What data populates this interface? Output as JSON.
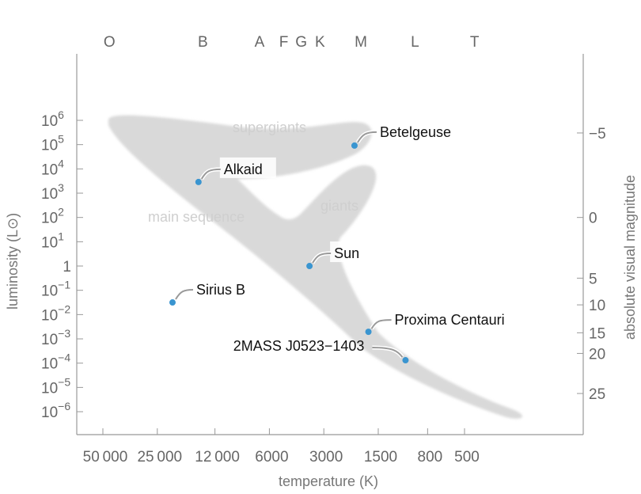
{
  "chart_data": {
    "type": "scatter",
    "title": "",
    "xlabel": "temperature (K)",
    "ylabel": "luminosity (L⊙)",
    "y2label": "absolute visual magnitude",
    "x_scale": "log-reversed",
    "y_scale": "log",
    "x_ticks": [
      50000,
      25000,
      12000,
      6000,
      3000,
      1500,
      800,
      500
    ],
    "x_tick_labels": [
      "50 000",
      "25 000",
      "12 000",
      "6000",
      "3000",
      "1500",
      "800",
      "500"
    ],
    "y_ticks": [
      {
        "exp": 6,
        "base": "10",
        "sup": "6"
      },
      {
        "exp": 5,
        "base": "10",
        "sup": "5"
      },
      {
        "exp": 4,
        "base": "10",
        "sup": "4"
      },
      {
        "exp": 3,
        "base": "10",
        "sup": "3"
      },
      {
        "exp": 2,
        "base": "10",
        "sup": "2"
      },
      {
        "exp": 1,
        "base": "10",
        "sup": "1"
      },
      {
        "exp": 0,
        "base": "1",
        "sup": ""
      },
      {
        "exp": -1,
        "base": "10",
        "sup": "−1"
      },
      {
        "exp": -2,
        "base": "10",
        "sup": "−2"
      },
      {
        "exp": -3,
        "base": "10",
        "sup": "−3"
      },
      {
        "exp": -4,
        "base": "10",
        "sup": "−4"
      },
      {
        "exp": -5,
        "base": "10",
        "sup": "−5"
      },
      {
        "exp": -6,
        "base": "10",
        "sup": "−6"
      }
    ],
    "y2_ticks": [
      {
        "value": -5,
        "label": "−5",
        "log_lum": 5.48
      },
      {
        "value": 0,
        "label": "0",
        "log_lum": 2.0
      },
      {
        "value": 5,
        "label": "5",
        "log_lum": -0.5
      },
      {
        "value": 10,
        "label": "10",
        "log_lum": -1.6
      },
      {
        "value": 15,
        "label": "15",
        "log_lum": -2.75
      },
      {
        "value": 20,
        "label": "20",
        "log_lum": -3.6
      },
      {
        "value": 25,
        "label": "25",
        "log_lum": -5.25
      }
    ],
    "spectral_classes": [
      {
        "label": "O",
        "temp": 46000
      },
      {
        "label": "B",
        "temp": 14000
      },
      {
        "label": "A",
        "temp": 6800
      },
      {
        "label": "F",
        "temp": 5000
      },
      {
        "label": "G",
        "temp": 4000
      },
      {
        "label": "K",
        "temp": 3150
      },
      {
        "label": "M",
        "temp": 1870
      },
      {
        "label": "L",
        "temp": 940
      },
      {
        "label": "T",
        "temp": 440
      }
    ],
    "regions": [
      {
        "label": "supergiants"
      },
      {
        "label": "main sequence"
      },
      {
        "label": "giants"
      }
    ],
    "points": [
      {
        "name": "Betelgeuse",
        "temp": 2030,
        "log_lum": 4.96
      },
      {
        "name": "Alkaid",
        "temp": 14800,
        "log_lum": 3.46
      },
      {
        "name": "Sun",
        "temp": 3600,
        "log_lum": 0.0
      },
      {
        "name": "Sirius B",
        "temp": 20600,
        "log_lum": -1.5
      },
      {
        "name": "Proxima Centauri",
        "temp": 1700,
        "log_lum": -2.71
      },
      {
        "name": "2MASS J0523−1403",
        "temp": 1060,
        "log_lum": -3.88
      }
    ],
    "point_color": "#3a95d0",
    "region_color": "#d9d9d9"
  }
}
